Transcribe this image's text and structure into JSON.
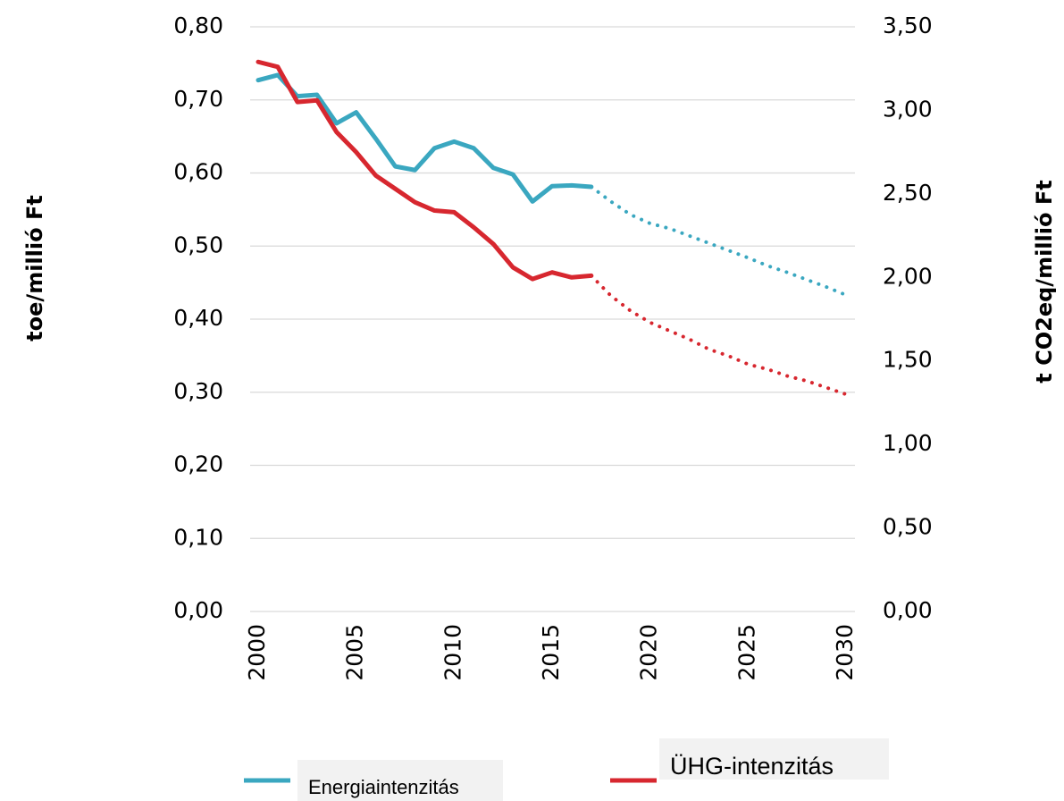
{
  "chart_data": {
    "type": "line",
    "x": [
      2000,
      2001,
      2002,
      2003,
      2004,
      2005,
      2006,
      2007,
      2008,
      2009,
      2010,
      2011,
      2012,
      2013,
      2014,
      2015,
      2016,
      2017,
      2018,
      2019,
      2020,
      2021,
      2022,
      2023,
      2024,
      2025,
      2026,
      2027,
      2028,
      2029,
      2030
    ],
    "xlim": [
      2000,
      2030
    ],
    "xticks": [
      2000,
      2005,
      2010,
      2015,
      2020,
      2025,
      2030
    ],
    "projection_start": 2017,
    "ylabel": "toe/millió Ft",
    "y2label": "t CO2eq/millió Ft",
    "ylim": [
      0,
      0.8
    ],
    "yticks": [
      {
        "value": 0,
        "label": "0,00"
      },
      {
        "value": 0.1,
        "label": "0,10"
      },
      {
        "value": 0.2,
        "label": "0,20"
      },
      {
        "value": 0.3,
        "label": "0,30"
      },
      {
        "value": 0.4,
        "label": "0,40"
      },
      {
        "value": 0.5,
        "label": "0,50"
      },
      {
        "value": 0.6,
        "label": "0,60"
      },
      {
        "value": 0.7,
        "label": "0,70"
      },
      {
        "value": 0.8,
        "label": "0,80"
      }
    ],
    "y2lim": [
      0,
      3.5
    ],
    "y2ticks": [
      {
        "value": 0,
        "label": "0,00"
      },
      {
        "value": 0.5,
        "label": "0,50"
      },
      {
        "value": 1,
        "label": "1,00"
      },
      {
        "value": 1.5,
        "label": "1,50"
      },
      {
        "value": 2,
        "label": "2,00"
      },
      {
        "value": 2.5,
        "label": "2,50"
      },
      {
        "value": 3,
        "label": "3,00"
      },
      {
        "value": 3.5,
        "label": "3,50"
      }
    ],
    "grid": true,
    "series": [
      {
        "name": "Energiaintenzitás",
        "color": "#3aa7c0",
        "axis": "y",
        "values": [
          0.727,
          0.734,
          0.705,
          0.707,
          0.668,
          0.683,
          0.647,
          0.609,
          0.604,
          0.634,
          0.643,
          0.634,
          0.607,
          0.598,
          0.561,
          0.582,
          0.583,
          0.581,
          0.561,
          0.543,
          0.531,
          0.524,
          0.514,
          0.504,
          0.494,
          0.484,
          0.473,
          0.464,
          0.454,
          0.444,
          0.433
        ]
      },
      {
        "name": "ÜHG-intenzitás",
        "color": "#d7272f",
        "axis": "y2",
        "values": [
          3.29,
          3.26,
          3.05,
          3.06,
          2.87,
          2.75,
          2.61,
          2.53,
          2.45,
          2.4,
          2.39,
          2.3,
          2.2,
          2.06,
          1.99,
          2.03,
          2.0,
          2.01,
          1.89,
          1.8,
          1.73,
          1.68,
          1.63,
          1.57,
          1.53,
          1.48,
          1.45,
          1.41,
          1.38,
          1.34,
          1.3
        ]
      }
    ]
  }
}
